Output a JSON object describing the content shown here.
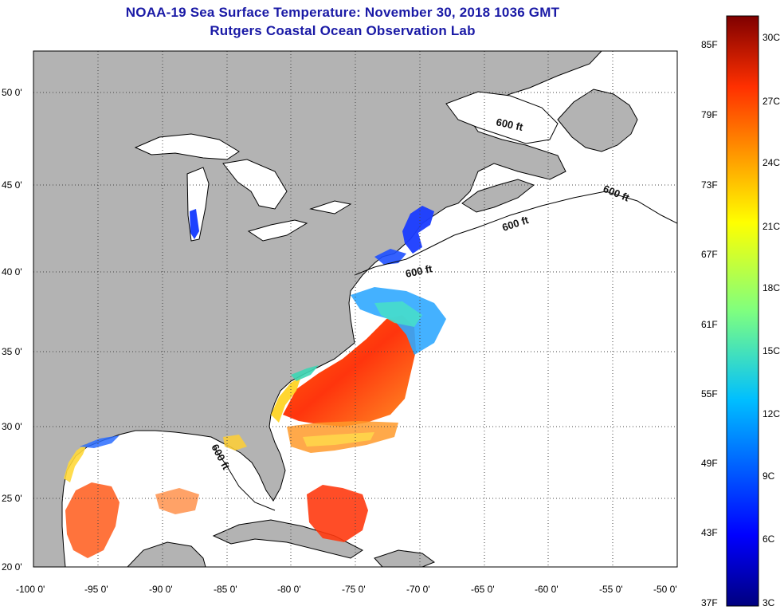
{
  "header": {
    "title": "NOAA-19 Sea Surface Temperature:  November 30, 2018 1036 GMT",
    "subtitle": "Rutgers Coastal Ocean Observation Lab"
  },
  "map": {
    "lon_range": [
      -100,
      -50
    ],
    "lat_range": [
      20,
      52
    ],
    "x_ticks": [
      {
        "value": -100,
        "label": "-100 0'"
      },
      {
        "value": -95,
        "label": "-95 0'"
      },
      {
        "value": -90,
        "label": "-90 0'"
      },
      {
        "value": -85,
        "label": "-85 0'"
      },
      {
        "value": -80,
        "label": "-80 0'"
      },
      {
        "value": -75,
        "label": "-75 0'"
      },
      {
        "value": -70,
        "label": "-70 0'"
      },
      {
        "value": -65,
        "label": "-65 0'"
      },
      {
        "value": -60,
        "label": "-60 0'"
      },
      {
        "value": -55,
        "label": "-55 0'"
      },
      {
        "value": -50,
        "label": "-50 0'"
      }
    ],
    "y_ticks": [
      {
        "value": 50,
        "label": "50 0'"
      },
      {
        "value": 45,
        "label": "45 0'"
      },
      {
        "value": 40,
        "label": "40 0'"
      },
      {
        "value": 35,
        "label": "35 0'"
      },
      {
        "value": 30,
        "label": "30 0'"
      },
      {
        "value": 25,
        "label": "25 0'"
      },
      {
        "value": 20,
        "label": "20 0'"
      }
    ],
    "grid": "dotted",
    "contour_label": "600 ft",
    "colors": {
      "land": "#b3b3b3",
      "ocean_nodata": "#ffffff",
      "coast": "#000000"
    }
  },
  "colorbar": {
    "fahrenheit": [
      "85F",
      "79F",
      "73F",
      "67F",
      "61F",
      "55F",
      "49F",
      "43F",
      "37F"
    ],
    "celsius": [
      "30C",
      "27C",
      "24C",
      "21C",
      "18C",
      "15C",
      "12C",
      "9C",
      "6C",
      "3C"
    ],
    "colormap": "jet",
    "range_c": [
      3,
      31
    ]
  }
}
